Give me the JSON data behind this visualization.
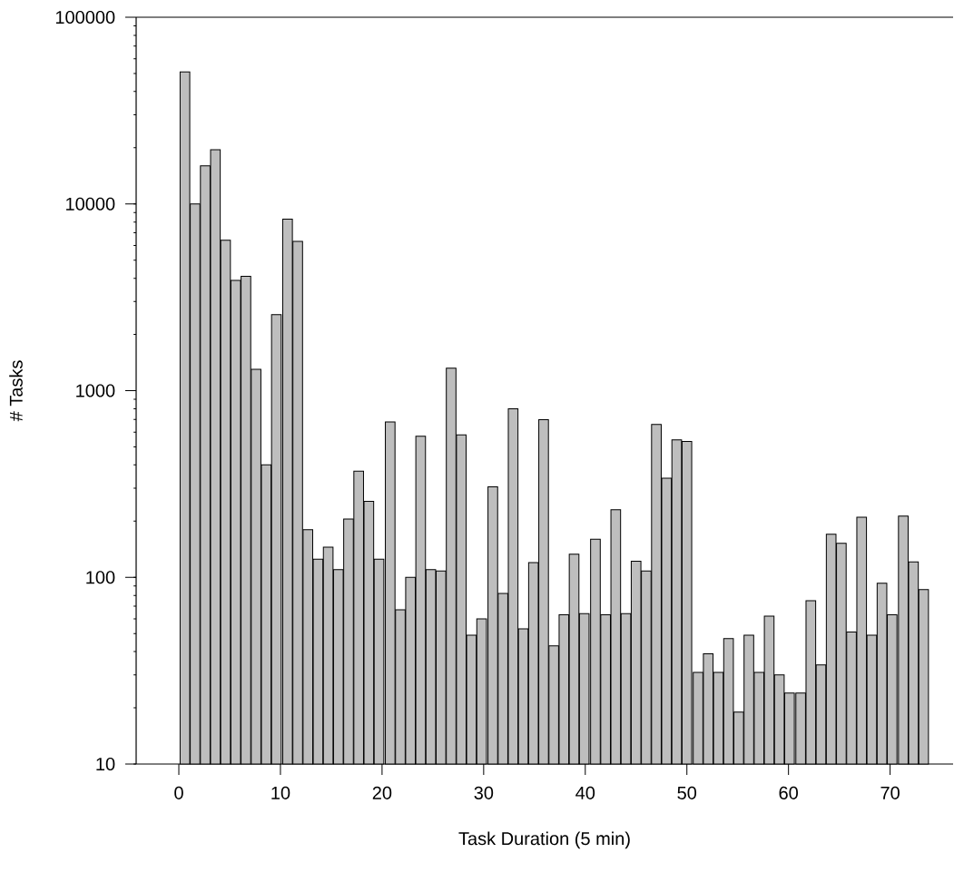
{
  "chart_data": {
    "type": "bar",
    "xlabel": "Task Duration (5 min)",
    "ylabel": "# Tasks",
    "log": "y",
    "color": "#bebebe",
    "x": [
      0.6,
      1.6,
      2.6,
      3.6,
      4.6,
      5.6,
      6.6,
      7.6,
      8.6,
      9.6,
      10.7,
      11.7,
      12.7,
      13.7,
      14.7,
      15.7,
      16.7,
      17.7,
      18.7,
      19.7,
      20.8,
      21.8,
      22.8,
      23.8,
      24.8,
      25.8,
      26.8,
      27.8,
      28.8,
      29.8,
      30.9,
      31.9,
      32.9,
      33.9,
      34.9,
      35.9,
      36.9,
      37.9,
      38.9,
      39.9,
      41.0,
      42.0,
      43.0,
      44.0,
      45.0,
      46.0,
      47.0,
      48.0,
      49.0,
      50.0,
      51.1,
      52.1,
      53.1,
      54.1,
      55.1,
      56.1,
      57.1,
      58.1,
      59.1,
      60.1,
      61.2,
      62.2,
      63.2,
      64.2,
      65.2,
      66.2,
      67.2,
      68.2,
      69.2,
      70.2,
      71.3,
      72.3,
      73.3
    ],
    "values": [
      51000,
      10000,
      16000,
      19500,
      6400,
      3900,
      4100,
      1300,
      400,
      2550,
      8300,
      6300,
      180,
      125,
      145,
      110,
      205,
      370,
      255,
      125,
      680,
      67,
      100,
      570,
      110,
      108,
      1320,
      580,
      49,
      60,
      305,
      82,
      800,
      53,
      120,
      700,
      43,
      63,
      133,
      64,
      160,
      63,
      230,
      64,
      122,
      108,
      660,
      340,
      545,
      535,
      31,
      39,
      31,
      47,
      19,
      49,
      31,
      62,
      30,
      24,
      24,
      75,
      34,
      170,
      152,
      51,
      210,
      49,
      93,
      63,
      213,
      121,
      86
    ],
    "xlim": [
      -4.2,
      76.2
    ],
    "ylim": [
      10,
      100000
    ],
    "xticks": [
      0,
      10,
      20,
      30,
      40,
      50,
      60,
      70
    ],
    "yticks": [
      10,
      100,
      1000,
      10000,
      100000
    ],
    "grid": false
  }
}
